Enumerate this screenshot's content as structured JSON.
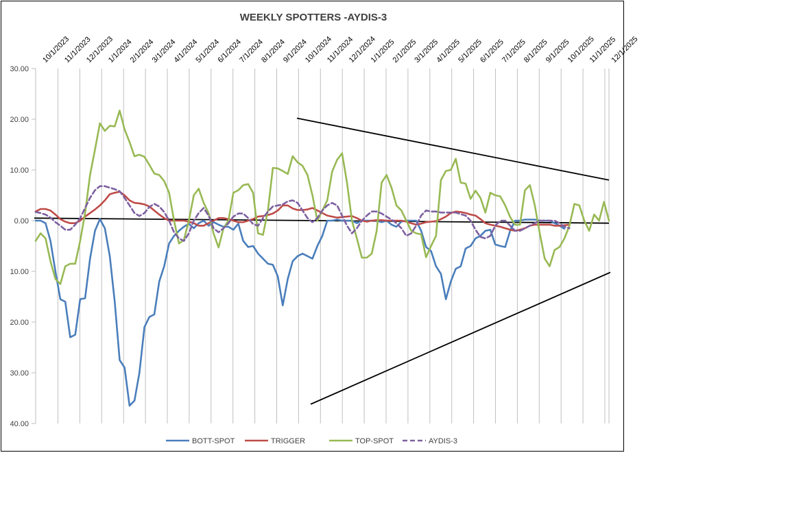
{
  "chart_data": {
    "type": "line",
    "title": "WEEKLY SPOTTERS -AYDIS-3",
    "ylim": [
      -40,
      30
    ],
    "y_ticks": [
      30,
      20,
      10,
      0,
      -10,
      -20,
      -30,
      -40
    ],
    "y_tick_labels": [
      "30.00",
      "20.00",
      "10.00",
      "0.00",
      "10.00",
      "20.00",
      "30.00",
      "40.00"
    ],
    "grid": "vertical-major",
    "legend_position": "bottom",
    "x_tick_labels": [
      "10/1/2023",
      "11/1/2023",
      "12/1/2023",
      "1/1/2024",
      "2/1/2024",
      "3/1/2024",
      "4/1/2024",
      "5/1/2024",
      "6/1/2024",
      "7/1/2024",
      "8/1/2024",
      "9/1/2024",
      "10/1/2024",
      "11/1/2024",
      "12/1/2024",
      "1/1/2025",
      "2/1/2025",
      "3/1/2025",
      "4/1/2025",
      "5/1/2025",
      "6/1/2025",
      "7/1/2025",
      "8/1/2025",
      "9/1/2025",
      "10/1/2025",
      "11/1/2025",
      "12/1/2025"
    ],
    "series": [
      {
        "name": "BOTT-SPOT",
        "color": "#4a7ebb",
        "style": "solid",
        "values": [
          0,
          0,
          -0.5,
          -4,
          -10,
          -15.5,
          -16,
          -23,
          -22.5,
          -15.5,
          -15.3,
          -7.5,
          -2,
          0.3,
          -1.5,
          -7,
          -16,
          -27.5,
          -29,
          -36.5,
          -35.5,
          -30,
          -21,
          -19,
          -18.5,
          -12,
          -9,
          -4.5,
          -3,
          -2,
          -1.2,
          -0.6,
          -1.5,
          -0.5,
          0,
          -1,
          -0.3,
          -0.8,
          -1.2,
          -1.2,
          -1.8,
          -0.6,
          -4,
          -5.2,
          -5,
          -6.5,
          -7.5,
          -8.5,
          -8.7,
          -11,
          -16.7,
          -11.5,
          -8,
          -7,
          -6.5,
          -7,
          -7.5,
          -5,
          -3,
          0,
          0,
          0.2,
          0,
          0,
          0,
          -0.5,
          0,
          0,
          0,
          0,
          -0.3,
          0,
          -0.8,
          -1.2,
          -0.2,
          0,
          0,
          0,
          -2,
          -5.2,
          -6,
          -9,
          -10.5,
          -15.5,
          -12,
          -9.5,
          -9,
          -5.5,
          -5,
          -3.5,
          -3,
          -2,
          -1.8,
          -4.7,
          -5,
          -5.2,
          -2,
          0,
          0,
          0.2,
          0.2,
          0.2,
          0,
          0,
          0,
          -0.5,
          -1,
          -1.6
        ]
      },
      {
        "name": "TRIGGER",
        "color": "#be4b48",
        "style": "solid",
        "values": [
          1.8,
          2.3,
          2.3,
          2,
          1.2,
          0.3,
          -0.2,
          -0.5,
          -0.5,
          0,
          0.8,
          1.5,
          2.2,
          3,
          4,
          5.2,
          5.5,
          5.7,
          5,
          4,
          3.5,
          3.4,
          3.2,
          2.8,
          2,
          1.2,
          0.5,
          0,
          0,
          0,
          0,
          -0.2,
          -0.5,
          -1,
          -1,
          -0.5,
          0,
          0.5,
          0.5,
          0.3,
          0,
          -0.3,
          -0.3,
          0,
          0.3,
          0.8,
          0.9,
          1.1,
          1.4,
          2,
          3,
          3,
          2.4,
          2.1,
          2.1,
          2.2,
          2.5,
          2,
          1.5,
          1,
          0.8,
          0.6,
          0.7,
          0.8,
          0.9,
          0.5,
          0,
          -0.2,
          0,
          0.1,
          0.1,
          0,
          0,
          0,
          0,
          -0.2,
          -0.5,
          -0.8,
          -0.6,
          -0.3,
          -0.2,
          -0.1,
          0.3,
          0.8,
          1.5,
          1.8,
          1.7,
          1.5,
          1.2,
          1,
          0.3,
          -0.5,
          -0.8,
          -1,
          -1.2,
          -1.5,
          -1.8,
          -2,
          -1.8,
          -1.5,
          -1,
          -0.8,
          -0.8,
          -0.8,
          -0.8,
          -1,
          -1,
          -0.9,
          -0.8
        ]
      },
      {
        "name": "TOP-SPOT",
        "color": "#98b954",
        "style": "solid",
        "values": [
          -4,
          -2.5,
          -3.5,
          -8,
          -11.5,
          -12.5,
          -9,
          -8.5,
          -8.5,
          -4,
          1.5,
          9,
          14,
          19.2,
          17.7,
          18.7,
          18.6,
          21.7,
          18,
          15.5,
          12.7,
          13,
          12.6,
          11,
          9.3,
          9,
          7.8,
          5.5,
          0,
          -4.5,
          -3.8,
          0,
          5,
          6.3,
          3.5,
          1.5,
          -2.5,
          -5.3,
          -1.5,
          0,
          5.5,
          6,
          7,
          7.2,
          5.5,
          -2.5,
          -2.8,
          2,
          10.4,
          10.3,
          9.8,
          9.2,
          12.7,
          11.5,
          10.8,
          9,
          5,
          0,
          2,
          4,
          9.7,
          12,
          13.3,
          7.5,
          0,
          -3.5,
          -7.3,
          -7.3,
          -6.5,
          -2,
          7.5,
          9,
          6.5,
          3,
          2,
          0,
          -2,
          -2.5,
          -2.7,
          -7.2,
          -5,
          -3,
          8,
          9.8,
          10,
          12.2,
          7.5,
          7.3,
          4.3,
          5.9,
          4.5,
          1.6,
          5.5,
          5,
          4.8,
          3,
          0.7,
          -0.8,
          -0.8,
          6,
          7,
          3,
          -2.5,
          -7.5,
          -9,
          -5.8,
          -5.2,
          -3.5,
          -1,
          3.3,
          3,
          0,
          -2,
          1.2,
          0,
          3.7,
          0
        ]
      },
      {
        "name": "AYDIS-3",
        "color": "#7d60a0",
        "style": "dashed",
        "values": [
          1.7,
          1.5,
          1.2,
          0.6,
          -0.3,
          -1,
          -1.8,
          -1.8,
          -0.8,
          0.5,
          2.5,
          4.5,
          6,
          6.8,
          6.8,
          6.5,
          6.2,
          5.8,
          4.5,
          3,
          1.5,
          0.9,
          1.5,
          2.7,
          3.3,
          2.8,
          1.7,
          0,
          -2.3,
          -3.5,
          -4,
          -2.5,
          0,
          1.5,
          2.5,
          1,
          -1.5,
          -2.3,
          -1.5,
          -0.5,
          0.8,
          1.4,
          1.4,
          0.5,
          -0.7,
          -1,
          0.5,
          1.8,
          2.8,
          3,
          3.2,
          3.8,
          4,
          3.5,
          2,
          0.5,
          -0.3,
          0.5,
          2,
          3,
          3.5,
          3,
          1,
          -1,
          -2.5,
          -1.5,
          0,
          1,
          1.8,
          1.8,
          1.4,
          0.8,
          0.2,
          -0.5,
          -1.5,
          -3,
          -2.5,
          -1,
          1,
          2,
          1.8,
          1.8,
          1.6,
          1.6,
          1.6,
          1.6,
          1.3,
          1,
          0,
          -1.8,
          -3.2,
          -3.5,
          -3,
          -1,
          0,
          0,
          -1,
          -2,
          -2,
          -1.5,
          -1,
          -0.5,
          0,
          0,
          0,
          0,
          -0.5,
          -1.2,
          -1.5
        ]
      }
    ],
    "trendlines_color": "#000000"
  }
}
